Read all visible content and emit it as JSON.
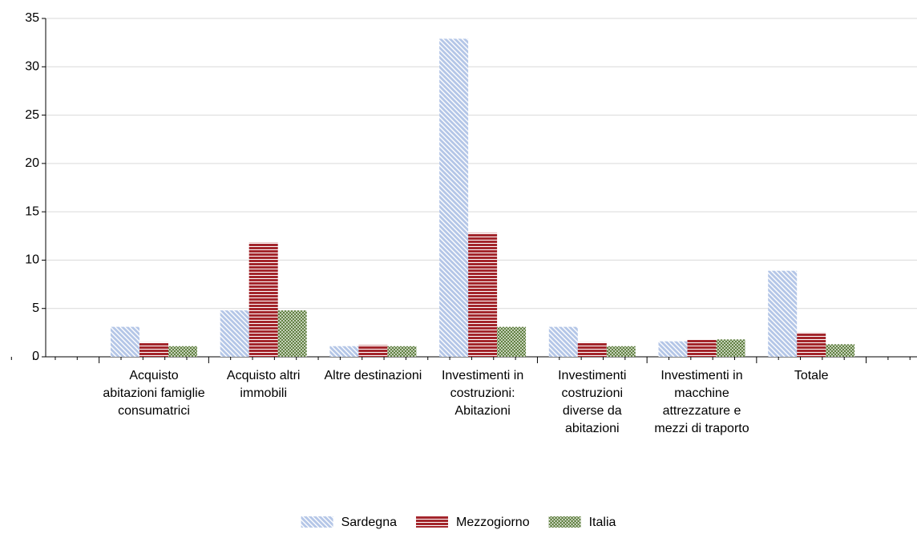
{
  "chart_data": {
    "type": "bar",
    "categories": [
      "Acquisto abitazioni famiglie consumatrici",
      "Acquisto altri immobili",
      "Altre destinazioni",
      "Investimenti in costruzioni: Abitazioni",
      "Investimenti costruzioni diverse da abitazioni",
      "Investimenti in macchine attrezzature e mezzi di traporto",
      "Totale"
    ],
    "series": [
      {
        "name": "Sardegna",
        "color": "#b4c6e7",
        "pattern": "diagonal",
        "values": [
          3.1,
          4.8,
          1.1,
          32.9,
          3.1,
          1.6,
          8.9
        ]
      },
      {
        "name": "Mezzogiorno",
        "color": "#a3262c",
        "pattern": "horizontal",
        "values": [
          1.5,
          11.8,
          1.2,
          12.8,
          1.5,
          1.8,
          2.5
        ]
      },
      {
        "name": "Italia",
        "color": "#5f7f3f",
        "pattern": "cross",
        "values": [
          1.1,
          4.8,
          1.1,
          3.1,
          1.1,
          1.8,
          1.3
        ]
      }
    ],
    "ylim": [
      0,
      35
    ],
    "yticks": [
      0,
      5,
      10,
      15,
      20,
      25,
      30,
      35
    ],
    "grid": true,
    "legend": "bottom"
  }
}
